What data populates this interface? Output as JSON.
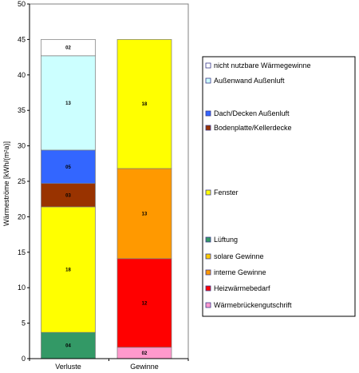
{
  "chart_data": {
    "type": "bar",
    "stacked": true,
    "categories": [
      "Verluste",
      "Gewinne"
    ],
    "ylabel": "Wärmeströme [kWh/(m²a)]",
    "ylim": [
      0,
      50
    ],
    "yticks": [
      0,
      5,
      10,
      15,
      20,
      25,
      30,
      35,
      40,
      45,
      50
    ],
    "grid": false,
    "legend_position": "right",
    "series": [
      {
        "name": "Wärmebrückengutschrift",
        "color": "#ff99cc",
        "values": [
          0,
          1.6
        ],
        "labels": [
          "",
          "02"
        ]
      },
      {
        "name": "Heizwärmebedarf",
        "color": "#ff0000",
        "values": [
          0,
          12.5
        ],
        "labels": [
          "",
          "12"
        ]
      },
      {
        "name": "interne Gewinne",
        "color": "#ff9900",
        "values": [
          0,
          12.7
        ],
        "labels": [
          "",
          "13"
        ]
      },
      {
        "name": "solare Gewinne",
        "color": "#ffcc00",
        "values": [
          0,
          0
        ],
        "labels": [
          "",
          ""
        ]
      },
      {
        "name": "Lüftung",
        "color": "#339966",
        "values": [
          3.7,
          0
        ],
        "labels": [
          "04",
          ""
        ]
      },
      {
        "name": "Fenster",
        "color": "#ffff00",
        "values": [
          17.7,
          18.2
        ],
        "labels": [
          "18",
          "18"
        ]
      },
      {
        "name": "Bodenplatte/Kellerdecke",
        "color": "#993300",
        "values": [
          3.3,
          0
        ],
        "labels": [
          "03",
          ""
        ]
      },
      {
        "name": "Dach/Decken Außenluft",
        "color": "#3366ff",
        "values": [
          4.7,
          0
        ],
        "labels": [
          "05",
          ""
        ]
      },
      {
        "name": "Außenwand Außenluft",
        "color": "#ccffff",
        "values": [
          13.3,
          0
        ],
        "labels": [
          "13",
          ""
        ]
      },
      {
        "name": "nicht nutzbare Wärmegewinne",
        "color": "#ffffff",
        "values": [
          2.3,
          0
        ],
        "labels": [
          "02",
          ""
        ]
      }
    ],
    "legend_order": [
      "nicht nutzbare Wärmegewinne",
      "Außenwand Außenluft",
      "Dach/Decken Außenluft",
      "Bodenplatte/Kellerdecke",
      "Fenster",
      "Lüftung",
      "solare Gewinne",
      "interne Gewinne",
      "Heizwärmebedarf",
      "Wärmebrückengutschrift"
    ]
  }
}
